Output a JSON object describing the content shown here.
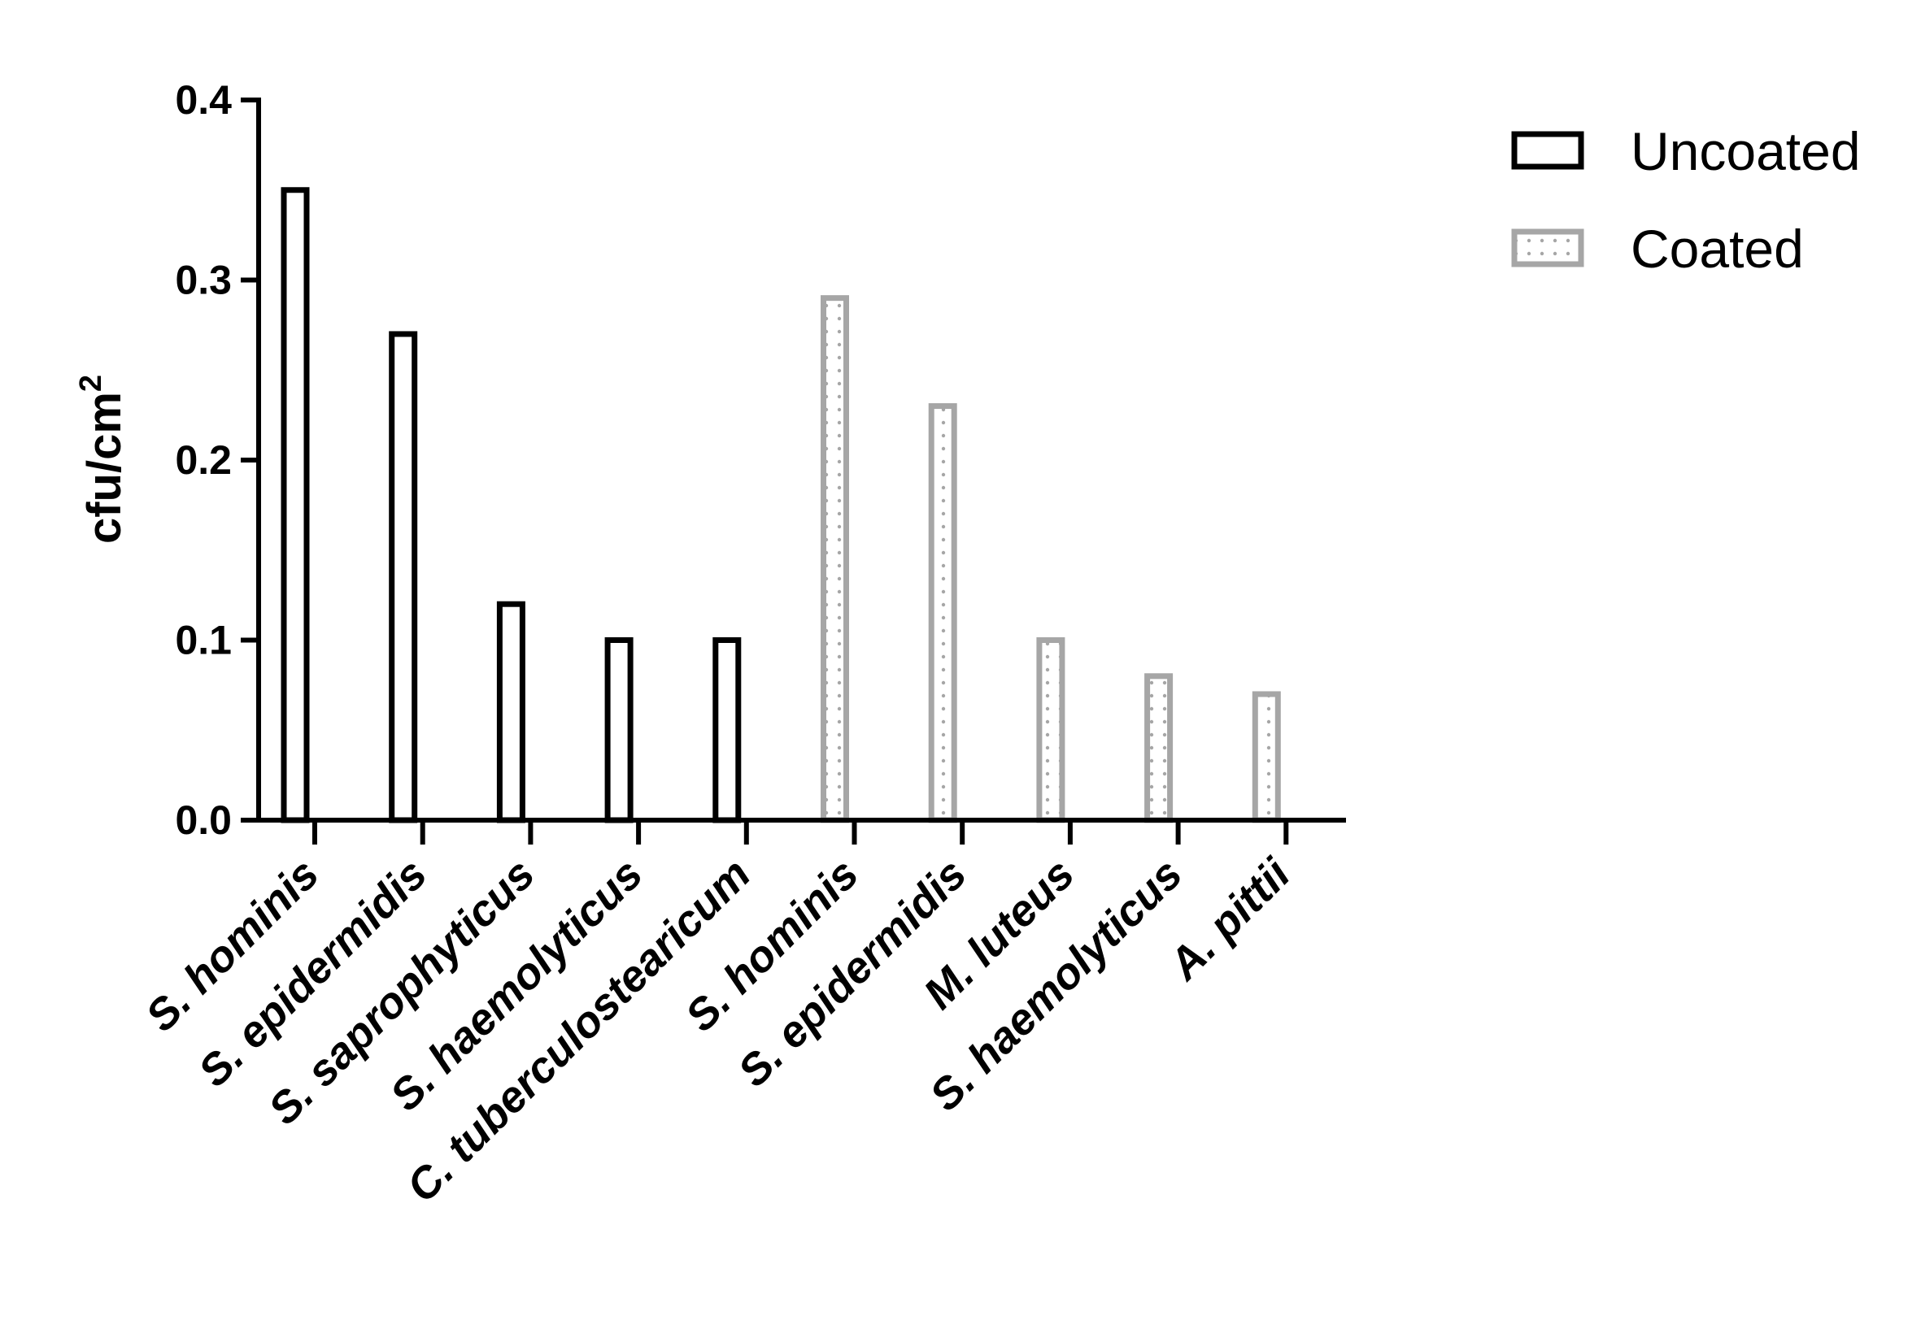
{
  "chart_data": {
    "type": "bar",
    "categories": [
      "S. hominis",
      "S. epidermidis",
      "S. saprophyticus",
      "S. haemolyticus",
      "C. tuberculostearicum",
      "S. hominis",
      "S. epidermidis",
      "M. luteus",
      "S. haemolyticus",
      "A. pittii"
    ],
    "series": [
      {
        "name": "Uncoated",
        "values": [
          0.35,
          0.27,
          0.12,
          0.1,
          0.1,
          null,
          null,
          null,
          null,
          null
        ],
        "color": "#000000",
        "fill": "none"
      },
      {
        "name": "Coated",
        "values": [
          null,
          null,
          null,
          null,
          null,
          0.29,
          0.23,
          0.1,
          0.08,
          0.07
        ],
        "color": "#a6a6a6",
        "fill": "dotted"
      }
    ],
    "ylabel": "cfu/cm",
    "ylabel_superscript": "2",
    "ylim": [
      0,
      0.4
    ],
    "yticks": [
      "0.0",
      "0.1",
      "0.2",
      "0.3",
      "0.4"
    ],
    "grid": false,
    "legend_position": "top-right"
  }
}
